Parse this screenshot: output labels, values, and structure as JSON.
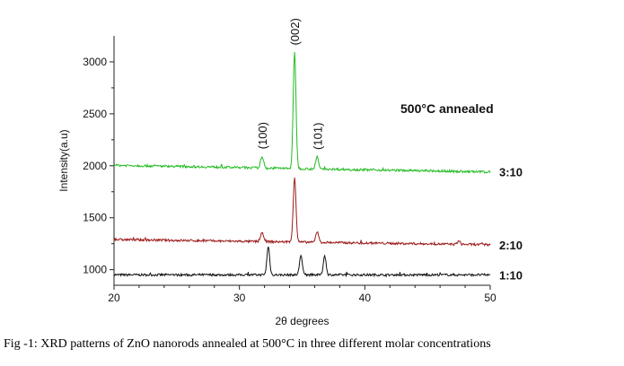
{
  "chart_data": {
    "type": "line",
    "title": "",
    "xlabel": "2θ degrees",
    "ylabel": "Intensity(a.u)",
    "xlim": [
      20,
      50
    ],
    "ylim": [
      850,
      3250
    ],
    "x_ticks": [
      20,
      30,
      40,
      50
    ],
    "y_ticks": [
      1000,
      1500,
      2000,
      2500,
      3000
    ],
    "grid": false,
    "annotation": "500°C annealed",
    "peak_labels": [
      {
        "text": "(100)",
        "x": 31.8
      },
      {
        "text": "(002)",
        "x": 34.4
      },
      {
        "text": "(101)",
        "x": 36.2
      }
    ],
    "series": [
      {
        "name": "1:10",
        "color": "#111111",
        "baseline": 950,
        "peaks": [
          {
            "x": 32.3,
            "y": 1220
          },
          {
            "x": 34.9,
            "y": 1140
          },
          {
            "x": 36.8,
            "y": 1135
          }
        ]
      },
      {
        "name": "2:10",
        "color": "#9b1b1b",
        "baseline_start": 1290,
        "baseline_end": 1240,
        "peaks": [
          {
            "x": 31.8,
            "y": 1360
          },
          {
            "x": 34.4,
            "y": 1890
          },
          {
            "x": 36.2,
            "y": 1370
          },
          {
            "x": 47.5,
            "y": 1275
          }
        ]
      },
      {
        "name": "3:10",
        "color": "#22bb22",
        "baseline_start": 2005,
        "baseline_end": 1940,
        "peaks": [
          {
            "x": 31.8,
            "y": 2090
          },
          {
            "x": 34.4,
            "y": 3090
          },
          {
            "x": 36.2,
            "y": 2085
          }
        ]
      }
    ]
  },
  "caption": "Fig -1: XRD patterns of ZnO nanorods annealed at 500°C in three different molar concentrations"
}
